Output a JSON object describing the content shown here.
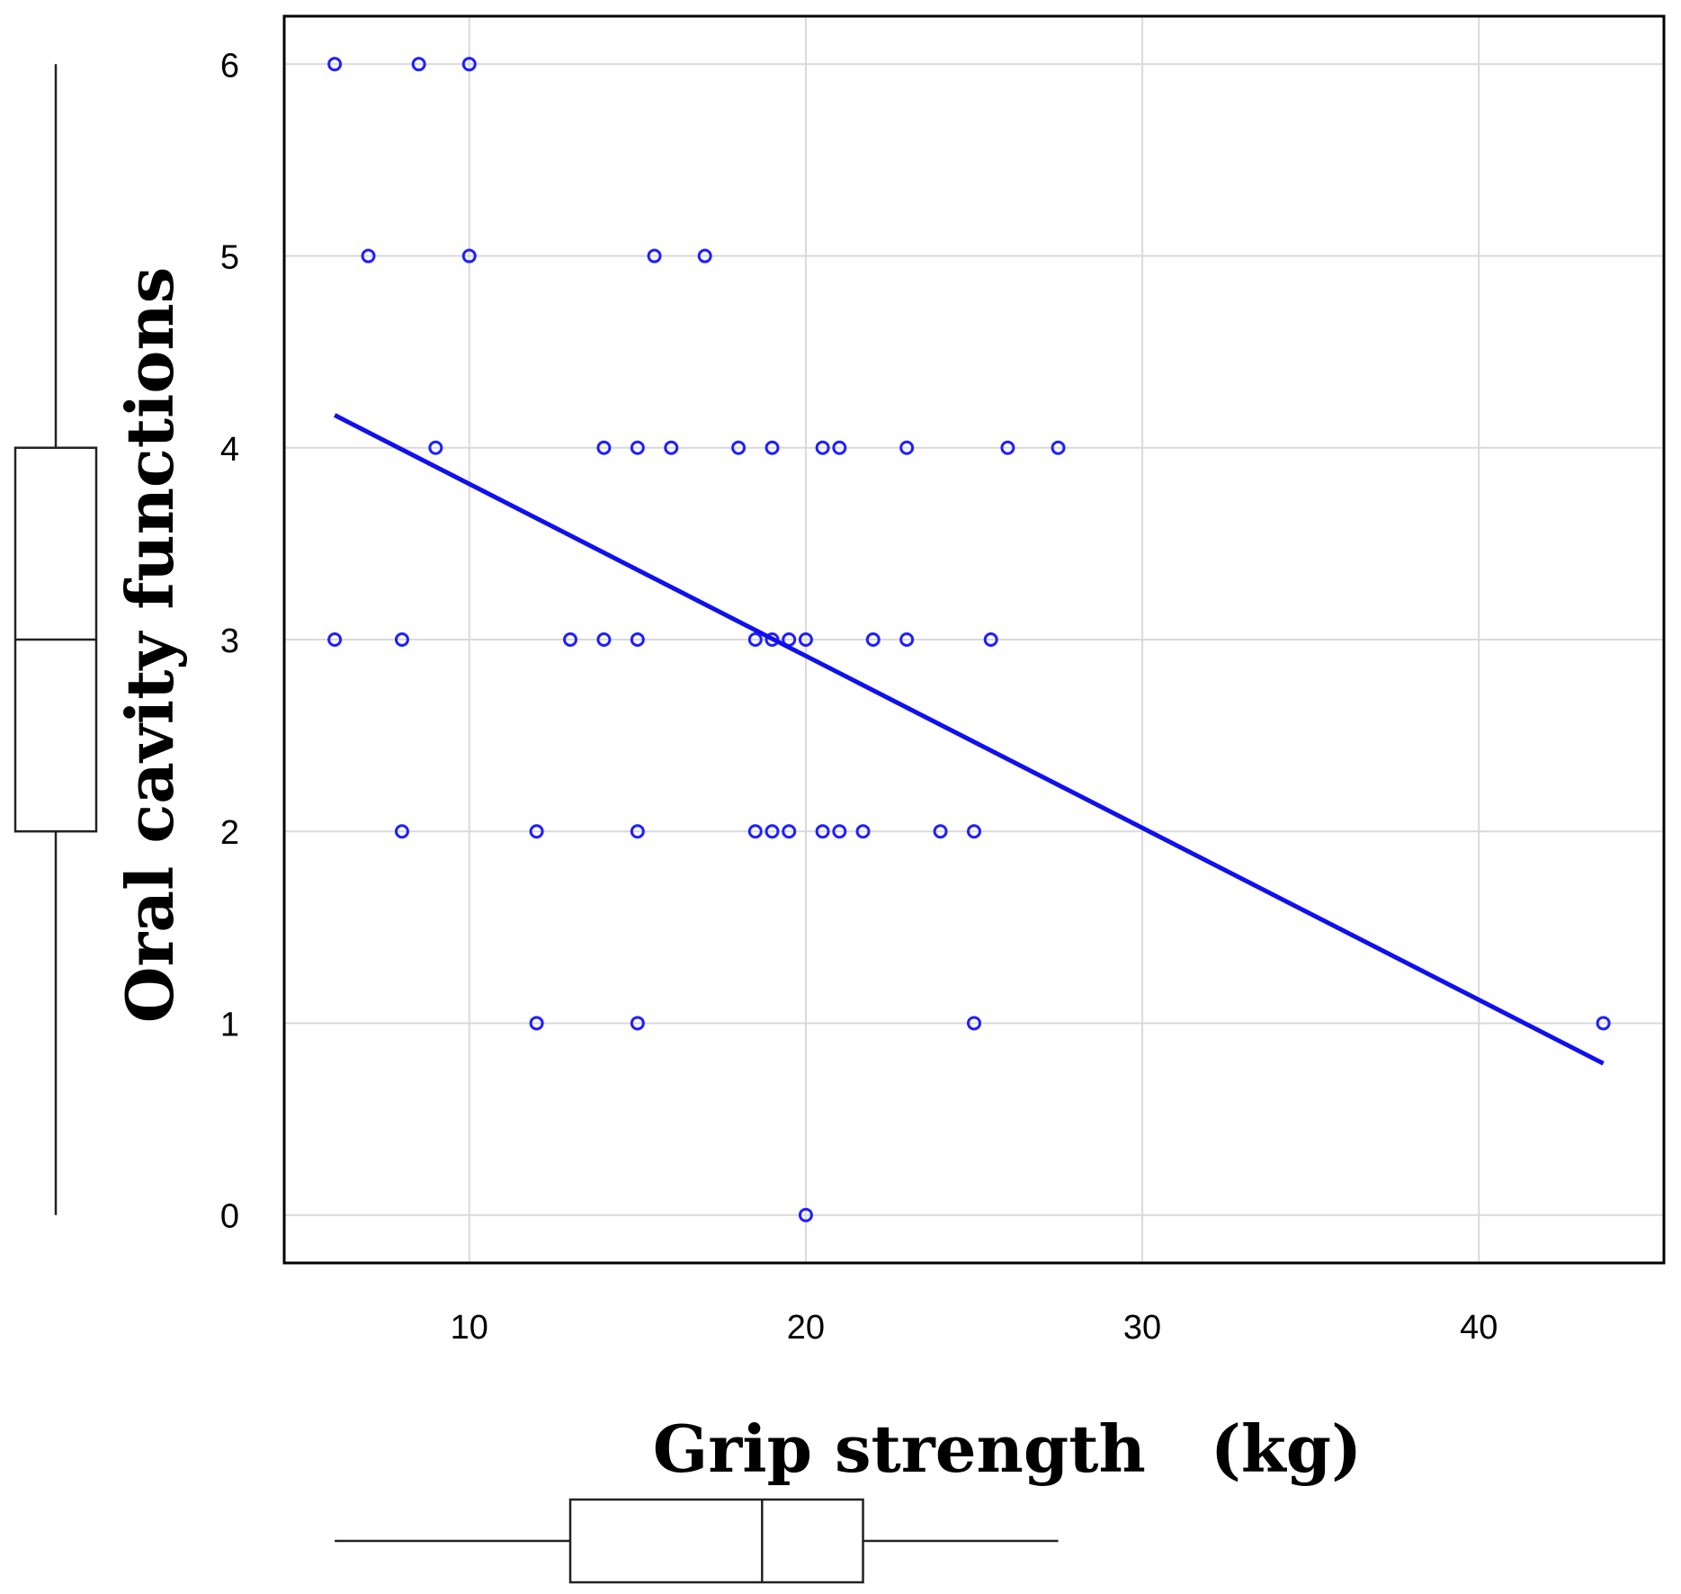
{
  "chart_data": {
    "type": "scatter",
    "title": "",
    "xlabel": "Grip strength　(kg)",
    "ylabel": "Oral cavity functions",
    "xlim": [
      4.5,
      45.5
    ],
    "ylim": [
      -0.25,
      6.25
    ],
    "x_ticks": [
      10,
      20,
      30,
      40
    ],
    "y_ticks": [
      0,
      1,
      2,
      3,
      4,
      5,
      6
    ],
    "grid": true,
    "point_color": "#1f1fff",
    "line_color": "#1010ee",
    "points": [
      {
        "x": 6,
        "y": 6
      },
      {
        "x": 8.5,
        "y": 6
      },
      {
        "x": 10,
        "y": 6
      },
      {
        "x": 7,
        "y": 5
      },
      {
        "x": 10,
        "y": 5
      },
      {
        "x": 15.5,
        "y": 5
      },
      {
        "x": 17,
        "y": 5
      },
      {
        "x": 9,
        "y": 4
      },
      {
        "x": 14,
        "y": 4
      },
      {
        "x": 15,
        "y": 4
      },
      {
        "x": 16,
        "y": 4
      },
      {
        "x": 18,
        "y": 4
      },
      {
        "x": 19,
        "y": 4
      },
      {
        "x": 20.5,
        "y": 4
      },
      {
        "x": 21,
        "y": 4
      },
      {
        "x": 23,
        "y": 4
      },
      {
        "x": 26,
        "y": 4
      },
      {
        "x": 27.5,
        "y": 4
      },
      {
        "x": 6,
        "y": 3
      },
      {
        "x": 8,
        "y": 3
      },
      {
        "x": 13,
        "y": 3
      },
      {
        "x": 14,
        "y": 3
      },
      {
        "x": 15,
        "y": 3
      },
      {
        "x": 18.5,
        "y": 3
      },
      {
        "x": 19,
        "y": 3
      },
      {
        "x": 19.5,
        "y": 3
      },
      {
        "x": 20,
        "y": 3
      },
      {
        "x": 22,
        "y": 3
      },
      {
        "x": 23,
        "y": 3
      },
      {
        "x": 25.5,
        "y": 3
      },
      {
        "x": 8,
        "y": 2
      },
      {
        "x": 12,
        "y": 2
      },
      {
        "x": 15,
        "y": 2
      },
      {
        "x": 18.5,
        "y": 2
      },
      {
        "x": 19,
        "y": 2
      },
      {
        "x": 19.5,
        "y": 2
      },
      {
        "x": 20.5,
        "y": 2
      },
      {
        "x": 21,
        "y": 2
      },
      {
        "x": 21.7,
        "y": 2
      },
      {
        "x": 24,
        "y": 2
      },
      {
        "x": 25,
        "y": 2
      },
      {
        "x": 12,
        "y": 1
      },
      {
        "x": 15,
        "y": 1
      },
      {
        "x": 25,
        "y": 1
      },
      {
        "x": 43.7,
        "y": 1
      },
      {
        "x": 20,
        "y": 0
      }
    ],
    "regression_line": {
      "x": [
        6,
        43.7
      ],
      "y": [
        4.17,
        0.79
      ]
    },
    "x_boxplot": {
      "whisker_low": 6,
      "q1": 13,
      "median": 18.7,
      "q3": 21.7,
      "whisker_high": 27.5
    },
    "y_boxplot": {
      "whisker_low": 0,
      "q1": 2,
      "median": 3,
      "q3": 4,
      "whisker_high": 6
    }
  }
}
